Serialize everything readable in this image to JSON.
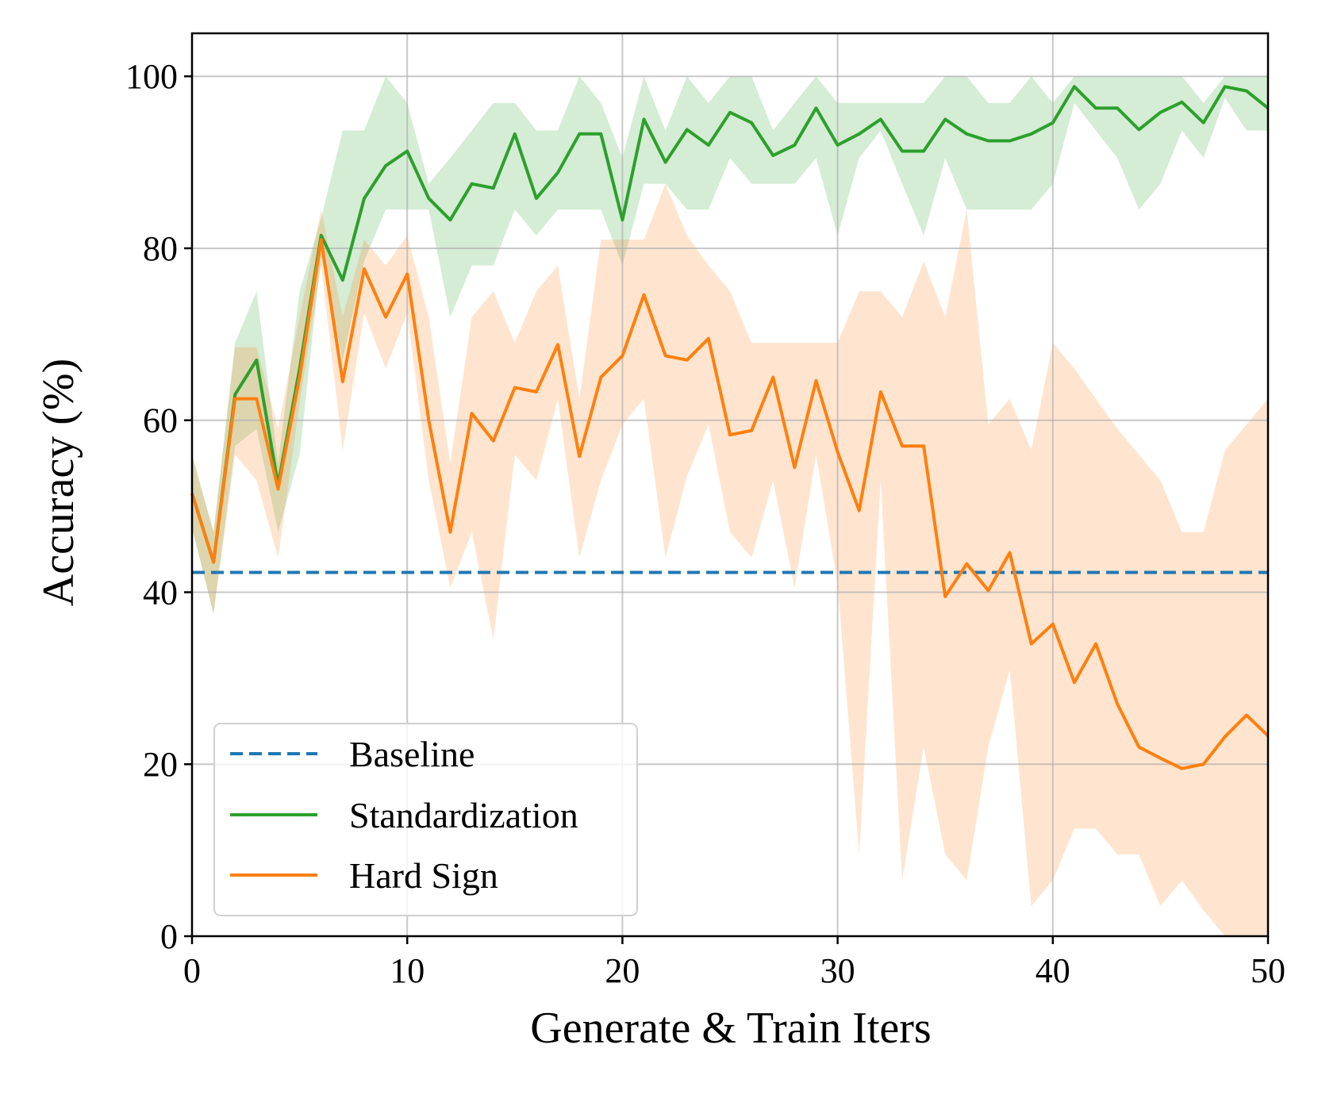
{
  "chart_data": {
    "type": "line",
    "title": "",
    "xlabel": "Generate & Train Iters",
    "ylabel": "Accuracy (%)",
    "xlim": [
      0,
      50
    ],
    "ylim": [
      0,
      105
    ],
    "xticks": [
      0,
      10,
      20,
      30,
      40,
      50
    ],
    "yticks": [
      0,
      20,
      40,
      60,
      80,
      100
    ],
    "grid": true,
    "legend_position": "lower-left",
    "baseline": {
      "name": "Baseline",
      "value": 42.3,
      "color": "#1f77b4",
      "style": "dashed"
    },
    "series": [
      {
        "name": "Standardization",
        "color": "#2ca02c",
        "x": [
          0,
          1,
          2,
          3,
          4,
          5,
          6,
          7,
          8,
          9,
          10,
          11,
          12,
          13,
          14,
          15,
          16,
          17,
          18,
          19,
          20,
          21,
          22,
          23,
          24,
          25,
          26,
          27,
          28,
          29,
          30,
          31,
          32,
          33,
          34,
          35,
          36,
          37,
          38,
          39,
          40,
          41,
          42,
          43,
          44,
          45,
          46,
          47,
          48,
          49,
          50
        ],
        "values": [
          51.5,
          43.5,
          63,
          67,
          52.5,
          66,
          81.5,
          76.3,
          85.8,
          89.6,
          91.3,
          85.8,
          83.3,
          87.5,
          87,
          93.3,
          85.8,
          88.8,
          93.3,
          93.3,
          83.3,
          95,
          90,
          93.8,
          92,
          95.8,
          94.6,
          90.8,
          92,
          96.3,
          92,
          93.3,
          95,
          91.3,
          91.3,
          95,
          93.3,
          92.5,
          92.5,
          93.3,
          94.6,
          98.8,
          96.3,
          96.3,
          93.8,
          95.8,
          97,
          94.6,
          98.8,
          98.3,
          96.3
        ],
        "lower": [
          47.5,
          37.5,
          57,
          59,
          47,
          56,
          79,
          67,
          78.5,
          84.5,
          84.5,
          84.5,
          72,
          78,
          78,
          84.5,
          81.5,
          84.5,
          84.5,
          84.5,
          78,
          87.5,
          87.5,
          84.5,
          84.5,
          90.5,
          87.5,
          87.5,
          87.5,
          90.5,
          81.5,
          90.5,
          93.7,
          87.5,
          81.5,
          90.5,
          84.5,
          84.5,
          84.5,
          84.5,
          87.5,
          96.9,
          93.7,
          90.5,
          84.5,
          87.5,
          93.7,
          90.5,
          97.5,
          93.7,
          93.7
        ],
        "upper": [
          56,
          47,
          69,
          75,
          55,
          75,
          83.5,
          93.7,
          93.7,
          100,
          96.9,
          87.5,
          90.5,
          93.7,
          96.9,
          96.9,
          93.7,
          93.7,
          100,
          96.9,
          90.5,
          100,
          93.7,
          100,
          96.9,
          100,
          100,
          93.7,
          96.9,
          100,
          96.9,
          96.9,
          96.9,
          96.9,
          96.9,
          100,
          100,
          96.9,
          96.9,
          100,
          96.9,
          100,
          100,
          100,
          100,
          100,
          100,
          96.9,
          100,
          100,
          100
        ]
      },
      {
        "name": "Hard Sign",
        "color": "#ff7f0e",
        "x": [
          0,
          1,
          2,
          3,
          4,
          5,
          6,
          7,
          8,
          9,
          10,
          11,
          12,
          13,
          14,
          15,
          16,
          17,
          18,
          19,
          20,
          21,
          22,
          23,
          24,
          25,
          26,
          27,
          28,
          29,
          30,
          31,
          32,
          33,
          34,
          35,
          36,
          37,
          38,
          39,
          40,
          41,
          42,
          43,
          44,
          45,
          46,
          47,
          48,
          49,
          50
        ],
        "values": [
          51.5,
          43.5,
          62.5,
          62.5,
          52,
          65,
          81,
          64.5,
          77.6,
          72,
          77,
          60,
          47,
          60.8,
          57.6,
          63.8,
          63.3,
          68.8,
          55.8,
          65,
          67.5,
          74.6,
          67.5,
          67,
          69.5,
          58.3,
          58.8,
          65,
          54.5,
          64.6,
          56.3,
          49.5,
          63.3,
          57,
          57,
          39.5,
          43.3,
          40.2,
          44.6,
          34,
          36.3,
          29.5,
          34,
          27,
          22,
          20.7,
          19.5,
          20,
          23.2,
          25.7,
          23.3
        ],
        "lower": [
          47.5,
          37.5,
          56,
          53,
          44,
          62,
          78,
          56.5,
          72.5,
          66,
          72.5,
          53,
          40.5,
          47,
          34.5,
          56,
          53,
          62.5,
          44,
          53,
          59.5,
          62.5,
          44,
          53.5,
          59.5,
          47,
          44,
          53,
          40.5,
          56,
          41,
          9.5,
          53,
          6.5,
          22,
          9.5,
          6.5,
          22,
          31,
          3.5,
          6.5,
          12.5,
          12.5,
          9.5,
          9.5,
          3.5,
          6.5,
          3,
          0,
          0,
          0
        ],
        "upper": [
          56,
          47,
          68.5,
          68.5,
          59,
          72,
          84.5,
          72,
          81,
          78,
          81.5,
          72,
          55,
          72,
          75,
          69,
          75,
          78,
          62.5,
          81,
          81,
          81,
          87.5,
          81.5,
          78,
          75,
          69,
          69,
          69,
          69,
          69,
          75,
          75,
          72,
          78.5,
          72,
          84.5,
          59.5,
          62.5,
          56.5,
          69,
          66,
          62.5,
          59,
          56,
          53,
          47,
          47,
          56.5,
          59.5,
          62.5
        ]
      }
    ]
  }
}
